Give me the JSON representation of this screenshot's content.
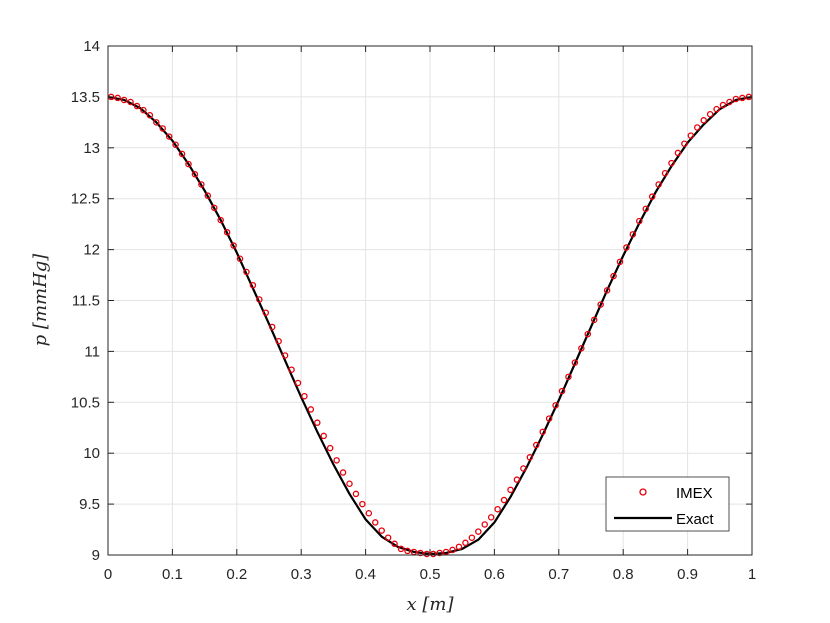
{
  "chart_data": {
    "type": "line",
    "title": "",
    "xlabel": "x [m]",
    "ylabel": "p [mmHg]",
    "xlim": [
      0,
      1
    ],
    "ylim": [
      9,
      14
    ],
    "xticks": [
      0,
      0.1,
      0.2,
      0.3,
      0.4,
      0.5,
      0.6,
      0.7,
      0.8,
      0.9,
      1
    ],
    "xtick_labels": [
      "0",
      "0.1",
      "0.2",
      "0.3",
      "0.4",
      "0.5",
      "0.6",
      "0.7",
      "0.8",
      "0.9",
      "1"
    ],
    "yticks": [
      9,
      9.5,
      10,
      10.5,
      11,
      11.5,
      12,
      12.5,
      13,
      13.5,
      14
    ],
    "ytick_labels": [
      "9",
      "9.5",
      "10",
      "10.5",
      "11",
      "11.5",
      "12",
      "12.5",
      "13",
      "13.5",
      "14"
    ],
    "grid": true,
    "legend_position": "bottom-right",
    "colors": {
      "imex": "#e8000b",
      "exact": "#000000",
      "grid": "#e3e3e3",
      "axes": "#262626"
    },
    "series": [
      {
        "name": "IMEX",
        "style": "markers",
        "marker": "circle",
        "x": [
          0.005,
          0.015,
          0.025,
          0.035,
          0.045,
          0.055,
          0.065,
          0.075,
          0.085,
          0.095,
          0.105,
          0.115,
          0.125,
          0.135,
          0.145,
          0.155,
          0.165,
          0.175,
          0.185,
          0.195,
          0.205,
          0.215,
          0.225,
          0.235,
          0.245,
          0.255,
          0.265,
          0.275,
          0.285,
          0.295,
          0.305,
          0.315,
          0.325,
          0.335,
          0.345,
          0.355,
          0.365,
          0.375,
          0.385,
          0.395,
          0.405,
          0.415,
          0.425,
          0.435,
          0.445,
          0.455,
          0.465,
          0.475,
          0.485,
          0.495,
          0.505,
          0.515,
          0.525,
          0.535,
          0.545,
          0.555,
          0.565,
          0.575,
          0.585,
          0.595,
          0.605,
          0.615,
          0.625,
          0.635,
          0.645,
          0.655,
          0.665,
          0.675,
          0.685,
          0.695,
          0.705,
          0.715,
          0.725,
          0.735,
          0.745,
          0.755,
          0.765,
          0.775,
          0.785,
          0.795,
          0.805,
          0.815,
          0.825,
          0.835,
          0.845,
          0.855,
          0.865,
          0.875,
          0.885,
          0.895,
          0.905,
          0.915,
          0.925,
          0.935,
          0.945,
          0.955,
          0.965,
          0.975,
          0.985,
          0.995
        ],
        "y": [
          13.5,
          13.49,
          13.47,
          13.45,
          13.41,
          13.37,
          13.32,
          13.25,
          13.19,
          13.11,
          13.03,
          12.94,
          12.84,
          12.74,
          12.64,
          12.53,
          12.41,
          12.29,
          12.17,
          12.04,
          11.91,
          11.78,
          11.65,
          11.51,
          11.38,
          11.24,
          11.1,
          10.96,
          10.82,
          10.69,
          10.56,
          10.43,
          10.3,
          10.17,
          10.05,
          9.93,
          9.81,
          9.7,
          9.6,
          9.5,
          9.41,
          9.32,
          9.24,
          9.17,
          9.11,
          9.06,
          9.04,
          9.03,
          9.02,
          9.01,
          9.01,
          9.02,
          9.03,
          9.05,
          9.08,
          9.12,
          9.17,
          9.23,
          9.3,
          9.37,
          9.45,
          9.54,
          9.64,
          9.74,
          9.85,
          9.96,
          10.08,
          10.21,
          10.34,
          10.47,
          10.61,
          10.75,
          10.89,
          11.03,
          11.17,
          11.31,
          11.46,
          11.6,
          11.74,
          11.88,
          12.02,
          12.15,
          12.28,
          12.4,
          12.52,
          12.64,
          12.75,
          12.85,
          12.95,
          13.04,
          13.12,
          13.2,
          13.27,
          13.33,
          13.38,
          13.42,
          13.45,
          13.48,
          13.49,
          13.5
        ]
      },
      {
        "name": "Exact",
        "style": "line",
        "x": [
          0,
          0.025,
          0.05,
          0.075,
          0.1,
          0.125,
          0.15,
          0.175,
          0.2,
          0.225,
          0.25,
          0.275,
          0.3,
          0.325,
          0.35,
          0.375,
          0.4,
          0.425,
          0.45,
          0.475,
          0.5,
          0.525,
          0.55,
          0.575,
          0.6,
          0.625,
          0.65,
          0.675,
          0.7,
          0.725,
          0.75,
          0.775,
          0.8,
          0.825,
          0.85,
          0.875,
          0.9,
          0.925,
          0.95,
          0.975,
          1
        ],
        "y": [
          13.5,
          13.47,
          13.39,
          13.25,
          13.07,
          12.84,
          12.58,
          12.29,
          11.97,
          11.62,
          11.27,
          10.91,
          10.55,
          10.21,
          9.89,
          9.6,
          9.35,
          9.18,
          9.08,
          9.03,
          9.01,
          9.02,
          9.06,
          9.15,
          9.32,
          9.57,
          9.86,
          10.18,
          10.52,
          10.88,
          11.24,
          11.6,
          11.94,
          12.26,
          12.56,
          12.82,
          13.05,
          13.23,
          13.38,
          13.47,
          13.5
        ]
      }
    ]
  }
}
